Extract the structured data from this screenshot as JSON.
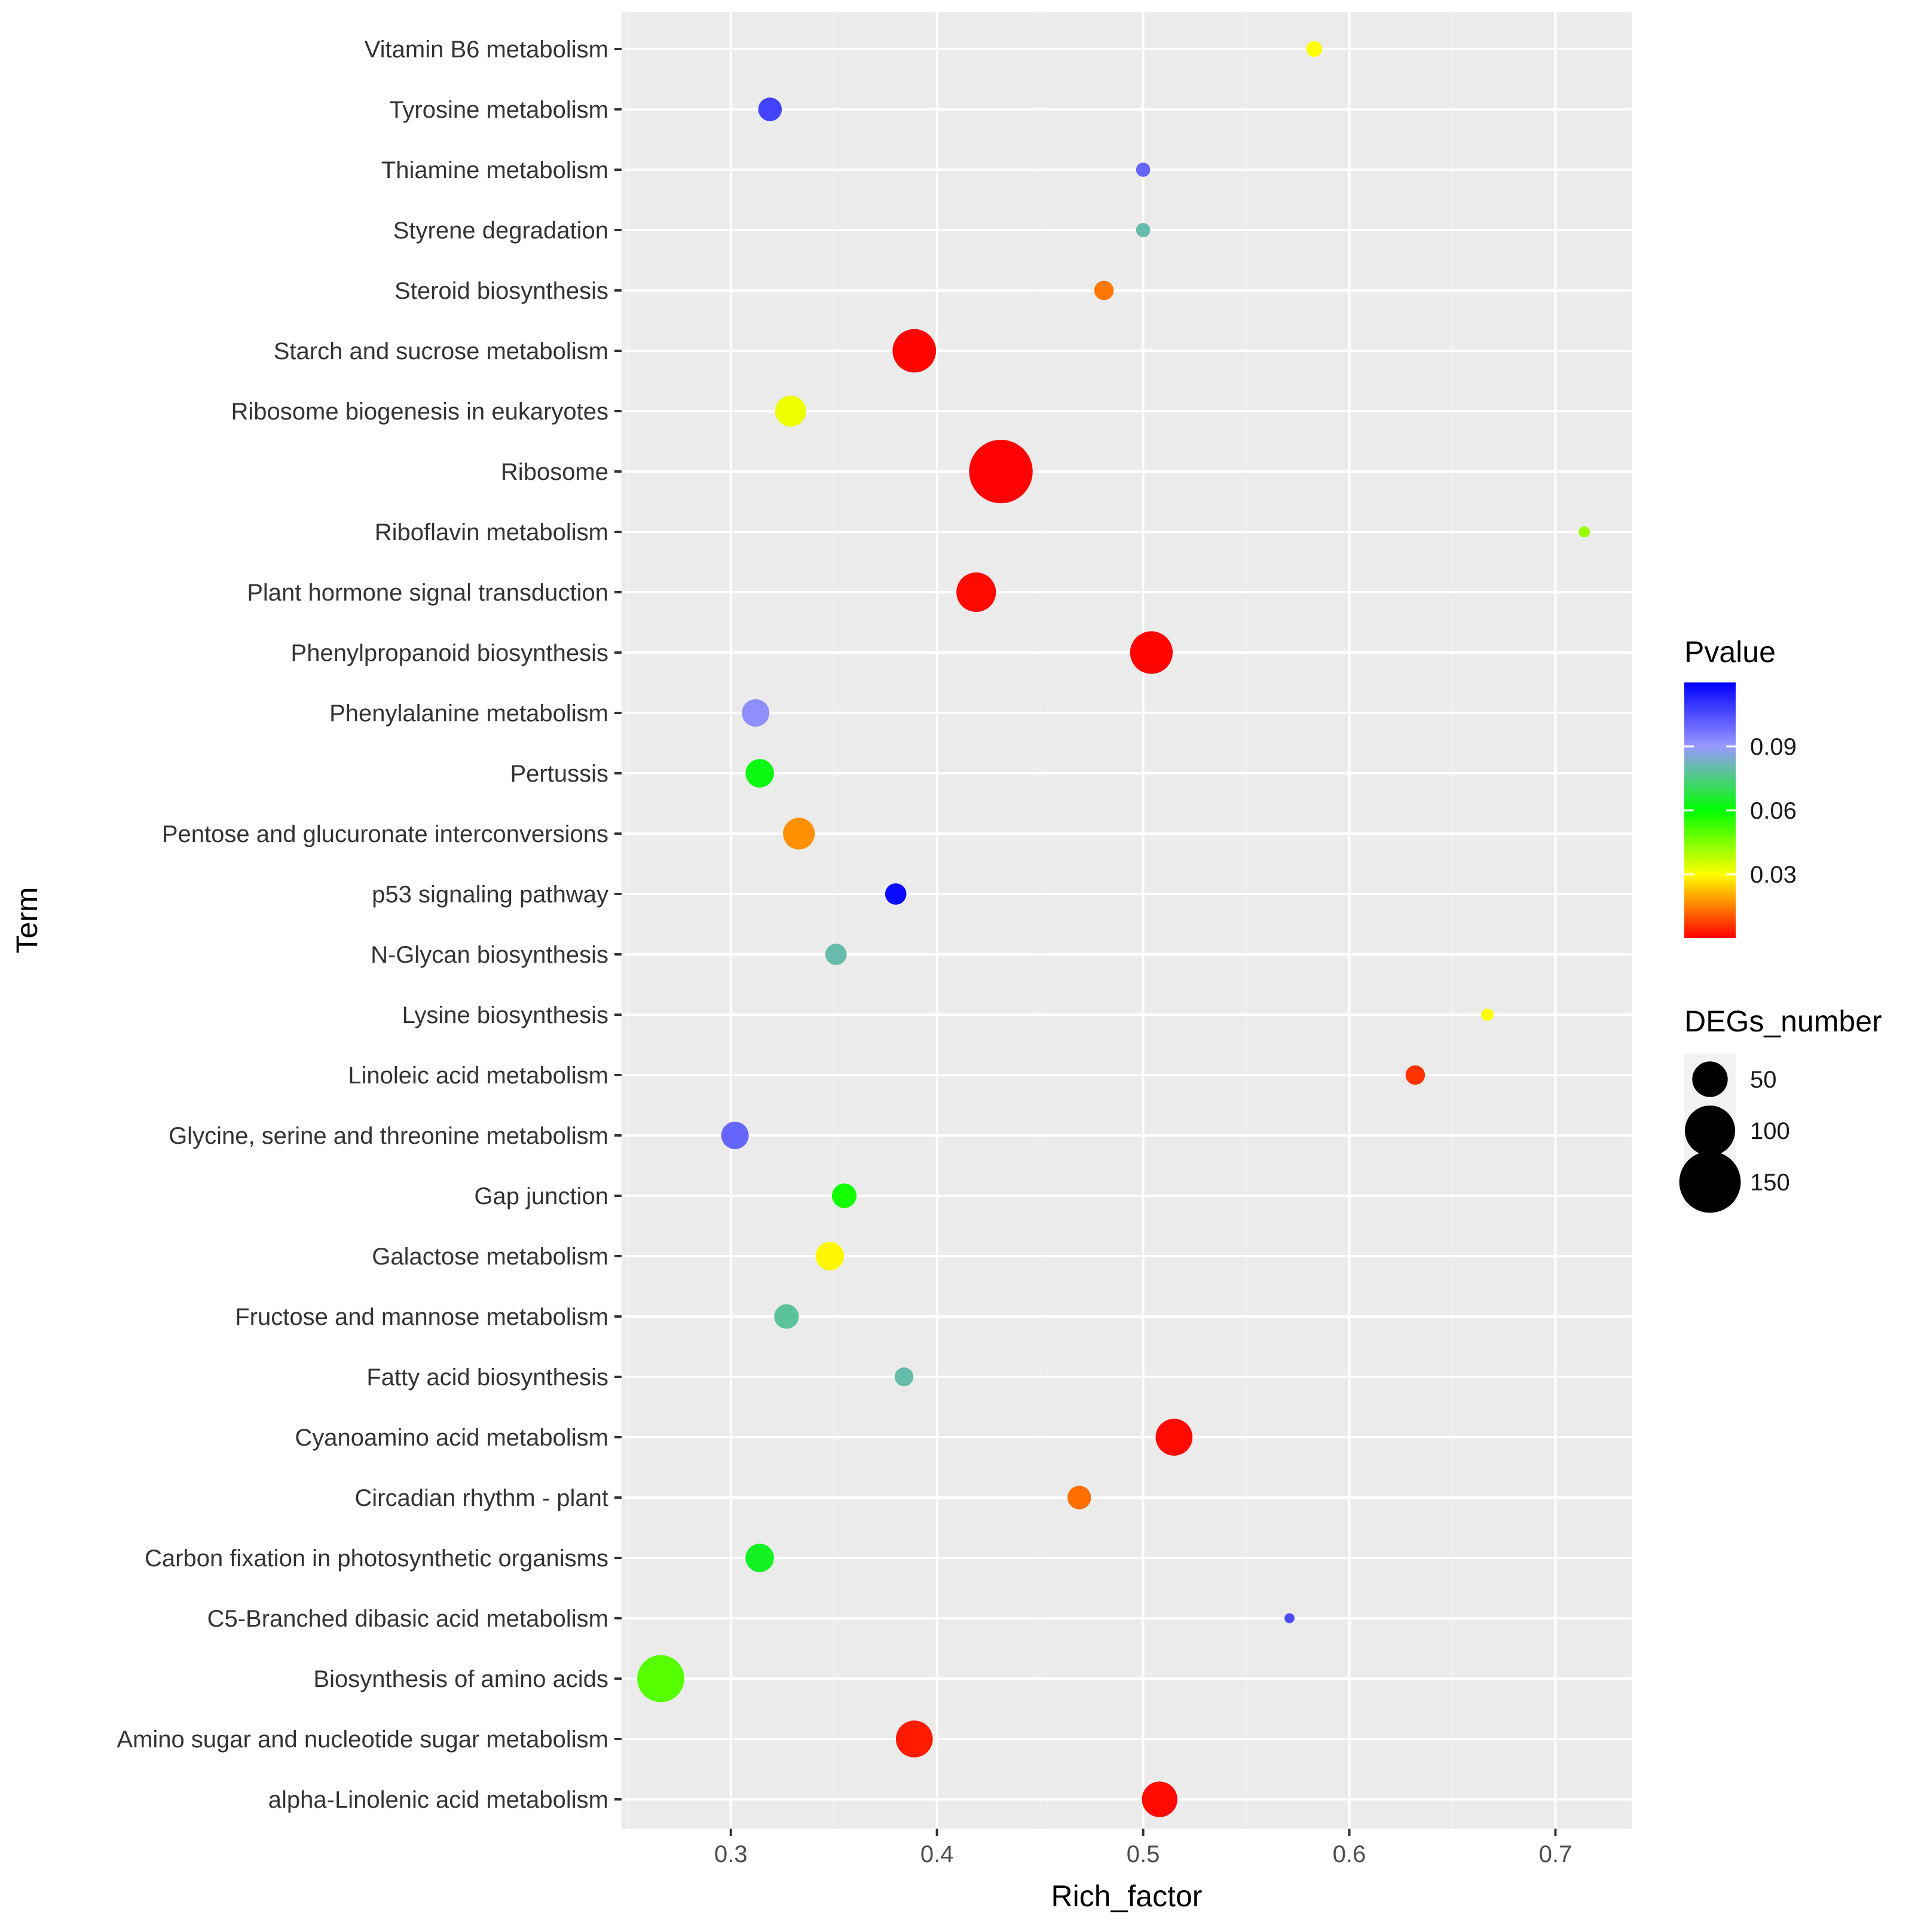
{
  "chart_data": {
    "type": "scatter",
    "title": "",
    "xlabel": "Rich_factor",
    "ylabel": "Term",
    "xlim": [
      0.247,
      0.737
    ],
    "x_ticks": [
      "0.3",
      "0.4",
      "0.5",
      "0.6",
      "0.7"
    ],
    "x_tick_values": [
      0.3,
      0.4,
      0.5,
      0.6,
      0.7
    ],
    "grid": true,
    "points": [
      {
        "term": "Vitamin B6 metabolism",
        "rich_factor": 0.583,
        "pvalue": 0.03,
        "degs": 10
      },
      {
        "term": "Tyrosine metabolism",
        "rich_factor": 0.319,
        "pvalue": 0.107,
        "degs": 22
      },
      {
        "term": "Thiamine metabolism",
        "rich_factor": 0.5,
        "pvalue": 0.1,
        "degs": 8
      },
      {
        "term": "Styrene degradation",
        "rich_factor": 0.5,
        "pvalue": 0.08,
        "degs": 8
      },
      {
        "term": "Steroid biosynthesis",
        "rich_factor": 0.481,
        "pvalue": 0.014,
        "degs": 15
      },
      {
        "term": "Starch and sucrose metabolism",
        "rich_factor": 0.389,
        "pvalue": 0.0005,
        "degs": 75
      },
      {
        "term": "Ribosome biogenesis in eukaryotes",
        "rich_factor": 0.329,
        "pvalue": 0.032,
        "degs": 38
      },
      {
        "term": "Ribosome",
        "rich_factor": 0.431,
        "pvalue": 0.0001,
        "degs": 160
      },
      {
        "term": "Riboflavin metabolism",
        "rich_factor": 0.714,
        "pvalue": 0.042,
        "degs": 5
      },
      {
        "term": "Plant hormone signal transduction",
        "rich_factor": 0.419,
        "pvalue": 0.001,
        "degs": 62
      },
      {
        "term": "Phenylpropanoid biosynthesis",
        "rich_factor": 0.504,
        "pvalue": 0.0005,
        "degs": 72
      },
      {
        "term": "Phenylalanine metabolism",
        "rich_factor": 0.312,
        "pvalue": 0.092,
        "degs": 30
      },
      {
        "term": "Pertussis",
        "rich_factor": 0.314,
        "pvalue": 0.062,
        "degs": 32
      },
      {
        "term": "Pentose and glucuronate interconversions",
        "rich_factor": 0.333,
        "pvalue": 0.017,
        "degs": 40
      },
      {
        "term": "p53 signaling pathway",
        "rich_factor": 0.38,
        "pvalue": 0.118,
        "degs": 18
      },
      {
        "term": "N-Glycan biosynthesis",
        "rich_factor": 0.351,
        "pvalue": 0.08,
        "degs": 18
      },
      {
        "term": "Lysine biosynthesis",
        "rich_factor": 0.667,
        "pvalue": 0.03,
        "degs": 6
      },
      {
        "term": "Linoleic acid metabolism",
        "rich_factor": 0.632,
        "pvalue": 0.006,
        "degs": 15
      },
      {
        "term": "Glycine, serine and threonine metabolism",
        "rich_factor": 0.302,
        "pvalue": 0.1,
        "degs": 30
      },
      {
        "term": "Gap junction",
        "rich_factor": 0.355,
        "pvalue": 0.058,
        "degs": 24
      },
      {
        "term": "Galactose metabolism",
        "rich_factor": 0.348,
        "pvalue": 0.029,
        "degs": 32
      },
      {
        "term": "Fructose and mannose metabolism",
        "rich_factor": 0.327,
        "pvalue": 0.078,
        "degs": 24
      },
      {
        "term": "Fatty acid biosynthesis",
        "rich_factor": 0.384,
        "pvalue": 0.08,
        "degs": 14
      },
      {
        "term": "Cyanoamino acid metabolism",
        "rich_factor": 0.515,
        "pvalue": 0.001,
        "degs": 54
      },
      {
        "term": "Circadian rhythm - plant",
        "rich_factor": 0.469,
        "pvalue": 0.013,
        "degs": 22
      },
      {
        "term": "Carbon fixation in photosynthetic organisms",
        "rich_factor": 0.314,
        "pvalue": 0.064,
        "degs": 32
      },
      {
        "term": "C5-Branched dibasic acid metabolism",
        "rich_factor": 0.571,
        "pvalue": 0.105,
        "degs": 4
      },
      {
        "term": "Biosynthesis of amino acids",
        "rich_factor": 0.266,
        "pvalue": 0.05,
        "degs": 88
      },
      {
        "term": "Amino sugar and nucleotide sugar metabolism",
        "rich_factor": 0.389,
        "pvalue": 0.003,
        "degs": 54
      },
      {
        "term": "alpha-Linolenic acid metabolism",
        "rich_factor": 0.508,
        "pvalue": 0.001,
        "degs": 50
      }
    ],
    "color_legend": {
      "title": "Pvalue",
      "ticks": [
        "0.09",
        "0.06",
        "0.03"
      ],
      "tick_values": [
        0.09,
        0.06,
        0.03
      ],
      "range": [
        0.0,
        0.12
      ],
      "colors": [
        "#ff0000",
        "#ffff00",
        "#00ff00",
        "#9999ff",
        "#0000ff"
      ]
    },
    "size_legend": {
      "title": "DEGs_number",
      "items": [
        {
          "label": "50",
          "value": 50
        },
        {
          "label": "100",
          "value": 100
        },
        {
          "label": "150",
          "value": 150
        }
      ]
    },
    "colors": {
      "panel_background": "#ebebeb",
      "grid_major": "#ffffff",
      "grid_minor": "#f2f2f2",
      "legend_key": "#f2f2f2",
      "point_legend": "#000000"
    }
  }
}
